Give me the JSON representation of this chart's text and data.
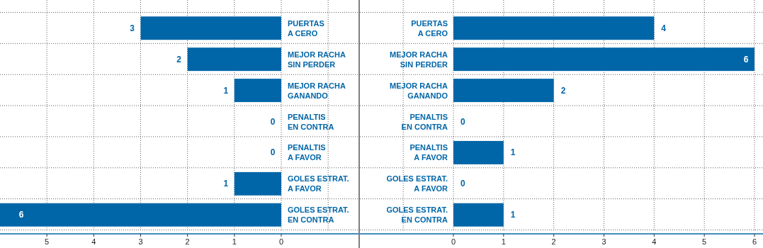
{
  "chart_data": [
    {
      "type": "bar",
      "orientation": "horizontal",
      "categories": [
        "PUERTAS\nA CERO",
        "MEJOR RACHA\nSIN PERDER",
        "MEJOR RACHA\nGANANDO",
        "PENALTIS\nEN CONTRA",
        "PENALTIS\nA FAVOR",
        "GOLES ESTRAT.\nA FAVOR",
        "GOLES ESTRAT.\nEN CONTRA"
      ],
      "values": [
        3,
        2,
        1,
        0,
        0,
        1,
        6
      ],
      "color": "#0066a8",
      "xlim": [
        6,
        0
      ],
      "xticks": [
        5,
        4,
        3,
        2,
        1,
        0
      ],
      "grid": true,
      "data_labels": true
    },
    {
      "type": "bar",
      "orientation": "horizontal",
      "categories": [
        "PUERTAS\nA CERO",
        "MEJOR RACHA\nSIN PERDER",
        "MEJOR RACHA\nGANANDO",
        "PENALTIS\nEN CONTRA",
        "PENALTIS\nA FAVOR",
        "GOLES ESTRAT.\nA FAVOR",
        "GOLES ESTRAT.\nEN CONTRA"
      ],
      "values": [
        4,
        6,
        2,
        0,
        1,
        0,
        1
      ],
      "color": "#0066a8",
      "xlim": [
        0,
        6
      ],
      "xticks": [
        0,
        1,
        2,
        3,
        4,
        5,
        6
      ],
      "grid": true,
      "data_labels": true
    }
  ]
}
